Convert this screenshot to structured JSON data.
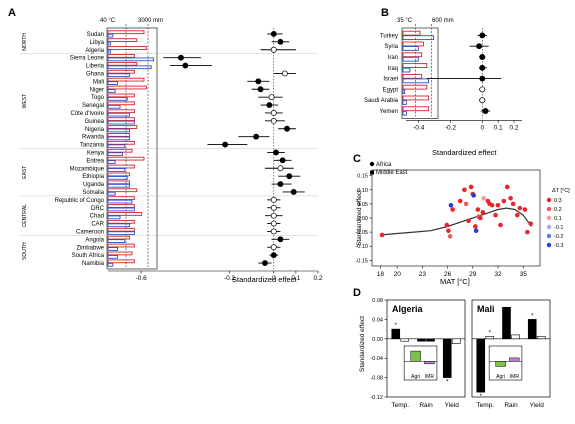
{
  "panels": {
    "a": "A",
    "b": "B",
    "c": "C",
    "d": "D"
  },
  "chart_data": [
    {
      "panel": "A",
      "type": "forest",
      "xlabel": "Standardized effect",
      "xlim": [
        -0.75,
        0.2
      ],
      "xticks": [
        -0.6,
        -0.2,
        0,
        0.1,
        0.2
      ],
      "bar_scale_labels": [
        "40 °C",
        "3000 mm"
      ],
      "regions": [
        "NORTH",
        "WEST",
        "EAST",
        "CENTRAL",
        "SOUTH"
      ],
      "countries": [
        "Sudan",
        "Libya",
        "Algeria",
        "Sierra Leone",
        "Liberia",
        "Ghana",
        "Mali",
        "Niger",
        "Togo",
        "Senegal",
        "Côte d'Ivoire",
        "Guinea",
        "Nigeria",
        "Rwanda",
        "Tanzania",
        "Kenya",
        "Eritrea",
        "Mozambique",
        "Ethiopia",
        "Uganda",
        "Somalia",
        "Republic of Congo",
        "DRC",
        "Chad",
        "CAR",
        "Cameroon",
        "Angola",
        "Zimbabwe",
        "South Africa",
        "Namibia"
      ],
      "temp_bar": [
        0.75,
        0.6,
        0.8,
        0.55,
        0.6,
        0.55,
        0.75,
        0.8,
        0.55,
        0.55,
        0.55,
        0.55,
        0.6,
        0.45,
        0.55,
        0.5,
        0.75,
        0.55,
        0.45,
        0.45,
        0.6,
        0.55,
        0.55,
        0.7,
        0.55,
        0.55,
        0.45,
        0.55,
        0.5,
        0.55
      ],
      "rain_bar": [
        0.1,
        0.05,
        0.05,
        0.95,
        0.9,
        0.45,
        0.2,
        0.15,
        0.4,
        0.25,
        0.45,
        0.55,
        0.45,
        0.45,
        0.35,
        0.3,
        0.15,
        0.35,
        0.4,
        0.45,
        0.15,
        0.5,
        0.55,
        0.25,
        0.45,
        0.55,
        0.35,
        0.2,
        0.2,
        0.1
      ],
      "effects": [
        {
          "value": 0.0,
          "lo": -0.03,
          "hi": 0.04,
          "fill": "black"
        },
        {
          "value": 0.03,
          "lo": -0.01,
          "hi": 0.07,
          "fill": "black"
        },
        {
          "value": 0.0,
          "lo": -0.06,
          "hi": 0.1,
          "fill": "white"
        },
        {
          "value": -0.42,
          "lo": -0.5,
          "hi": -0.33,
          "fill": "black"
        },
        {
          "value": -0.4,
          "lo": -0.47,
          "hi": -0.28,
          "fill": "black"
        },
        {
          "value": 0.05,
          "lo": 0.0,
          "hi": 0.1,
          "fill": "white"
        },
        {
          "value": -0.07,
          "lo": -0.12,
          "hi": -0.02,
          "fill": "black"
        },
        {
          "value": -0.06,
          "lo": -0.1,
          "hi": -0.02,
          "fill": "black"
        },
        {
          "value": -0.01,
          "lo": -0.07,
          "hi": 0.04,
          "fill": "white"
        },
        {
          "value": -0.02,
          "lo": -0.06,
          "hi": 0.02,
          "fill": "black"
        },
        {
          "value": 0.0,
          "lo": -0.04,
          "hi": 0.04,
          "fill": "white"
        },
        {
          "value": 0.0,
          "lo": -0.04,
          "hi": 0.05,
          "fill": "white"
        },
        {
          "value": 0.06,
          "lo": 0.02,
          "hi": 0.1,
          "fill": "black"
        },
        {
          "value": -0.08,
          "lo": -0.16,
          "hi": -0.02,
          "fill": "black"
        },
        {
          "value": -0.22,
          "lo": -0.3,
          "hi": -0.12,
          "fill": "black"
        },
        {
          "value": 0.01,
          "lo": -0.03,
          "hi": 0.05,
          "fill": "black"
        },
        {
          "value": 0.04,
          "lo": 0.0,
          "hi": 0.08,
          "fill": "black"
        },
        {
          "value": 0.03,
          "lo": -0.04,
          "hi": 0.09,
          "fill": "white"
        },
        {
          "value": 0.07,
          "lo": 0.02,
          "hi": 0.12,
          "fill": "black"
        },
        {
          "value": 0.03,
          "lo": -0.01,
          "hi": 0.08,
          "fill": "black"
        },
        {
          "value": 0.09,
          "lo": 0.04,
          "hi": 0.14,
          "fill": "black"
        },
        {
          "value": 0.0,
          "lo": -0.03,
          "hi": 0.03,
          "fill": "white"
        },
        {
          "value": 0.0,
          "lo": -0.03,
          "hi": 0.03,
          "fill": "white"
        },
        {
          "value": 0.0,
          "lo": -0.04,
          "hi": 0.04,
          "fill": "white"
        },
        {
          "value": 0.0,
          "lo": -0.03,
          "hi": 0.03,
          "fill": "white"
        },
        {
          "value": 0.0,
          "lo": -0.03,
          "hi": 0.03,
          "fill": "white"
        },
        {
          "value": 0.03,
          "lo": -0.01,
          "hi": 0.07,
          "fill": "black"
        },
        {
          "value": 0.0,
          "lo": -0.03,
          "hi": 0.03,
          "fill": "white"
        },
        {
          "value": 0.0,
          "lo": -0.02,
          "hi": 0.02,
          "fill": "black"
        },
        {
          "value": -0.04,
          "lo": -0.07,
          "hi": -0.01,
          "fill": "black"
        }
      ]
    },
    {
      "panel": "B",
      "type": "forest",
      "xlabel": "Standardized effect",
      "xlim": [
        -0.48,
        0.25
      ],
      "xticks": [
        -0.4,
        -0.2,
        0,
        0.1,
        0.2
      ],
      "bar_scale_labels": [
        "35 °C",
        "600 mm"
      ],
      "countries": [
        "Turkey",
        "Syria",
        "Iran",
        "Iraq",
        "Israel",
        "Egypt",
        "Saudi Arabia",
        "Yemen"
      ],
      "temp_bar": [
        0.5,
        0.6,
        0.55,
        0.7,
        0.55,
        0.7,
        0.75,
        0.75
      ],
      "rain_bar": [
        0.9,
        0.45,
        0.45,
        0.2,
        0.75,
        0.05,
        0.1,
        0.1
      ],
      "effects": [
        {
          "value": 0.0,
          "lo": -0.03,
          "hi": 0.03,
          "fill": "black"
        },
        {
          "value": -0.02,
          "lo": -0.08,
          "hi": 0.04,
          "fill": "black"
        },
        {
          "value": 0.0,
          "lo": -0.02,
          "hi": 0.02,
          "fill": "black"
        },
        {
          "value": 0.0,
          "lo": -0.02,
          "hi": 0.03,
          "fill": "black"
        },
        {
          "value": 0.0,
          "lo": -0.35,
          "hi": 0.12,
          "fill": "black"
        },
        {
          "value": 0.0,
          "lo": -0.02,
          "hi": 0.02,
          "fill": "white"
        },
        {
          "value": 0.0,
          "lo": -0.02,
          "hi": 0.02,
          "fill": "white"
        },
        {
          "value": 0.02,
          "lo": -0.01,
          "hi": 0.05,
          "fill": "black"
        }
      ]
    },
    {
      "panel": "C",
      "type": "scatter",
      "xlabel": "MAT [°C]",
      "ylabel": "Standardized effect",
      "xlim": [
        17,
        37
      ],
      "ylim": [
        -0.17,
        0.17
      ],
      "xticks": [
        18,
        20,
        23,
        26,
        29,
        32,
        35
      ],
      "yticks": [
        -0.15,
        -0.1,
        -0.05,
        0,
        0.05,
        0.1,
        0.15
      ],
      "legend_markers": [
        "Africa",
        "Middle East"
      ],
      "colorbar_title": "ΔT [°C]",
      "colorbar_ticks": [
        "0.3",
        "0.2",
        "0.1",
        "-0.1",
        "-0.2",
        "-0.3"
      ],
      "colorbar_colors": [
        "#e8252b",
        "#ee5a5e",
        "#f49a9c",
        "#9aaee8",
        "#5a78e0",
        "#2340d8"
      ],
      "points": [
        {
          "x": 18.2,
          "y": -0.06,
          "c": "#e8252b"
        },
        {
          "x": 25.9,
          "y": -0.025,
          "c": "#e8252b"
        },
        {
          "x": 26.1,
          "y": -0.045,
          "c": "#e8252b"
        },
        {
          "x": 26.3,
          "y": -0.065,
          "c": "#ee5a5e"
        },
        {
          "x": 26.4,
          "y": 0.045,
          "c": "#2340d8"
        },
        {
          "x": 26.6,
          "y": 0.03,
          "c": "#e8252b"
        },
        {
          "x": 27.5,
          "y": 0.06,
          "c": "#e8252b"
        },
        {
          "x": 28.0,
          "y": 0.1,
          "c": "#e8252b"
        },
        {
          "x": 28.2,
          "y": 0.05,
          "c": "#ee5a5e"
        },
        {
          "x": 28.5,
          "y": -0.01,
          "c": "#e8252b"
        },
        {
          "x": 28.8,
          "y": 0.11,
          "c": "#e8252b"
        },
        {
          "x": 29.0,
          "y": 0.085,
          "c": "#e8252b"
        },
        {
          "x": 29.1,
          "y": 0.08,
          "c": "#2340d8"
        },
        {
          "x": 29.3,
          "y": -0.03,
          "c": "#e8252b"
        },
        {
          "x": 29.4,
          "y": -0.045,
          "c": "#2340d8"
        },
        {
          "x": 29.6,
          "y": 0.03,
          "c": "#e8252b"
        },
        {
          "x": 29.7,
          "y": 0.005,
          "c": "#ee5a5e"
        },
        {
          "x": 29.9,
          "y": 0.0,
          "c": "#e8252b"
        },
        {
          "x": 30.2,
          "y": 0.02,
          "c": "#e8252b"
        },
        {
          "x": 30.3,
          "y": 0.07,
          "c": "#f49a9c"
        },
        {
          "x": 30.8,
          "y": 0.06,
          "c": "#e8252b"
        },
        {
          "x": 31.0,
          "y": 0.05,
          "c": "#e8252b"
        },
        {
          "x": 31.3,
          "y": 0.045,
          "c": "#e8252b"
        },
        {
          "x": 31.7,
          "y": 0.01,
          "c": "#e8252b"
        },
        {
          "x": 32.0,
          "y": 0.045,
          "c": "#e8252b"
        },
        {
          "x": 32.3,
          "y": -0.025,
          "c": "#e8252b"
        },
        {
          "x": 32.7,
          "y": 0.06,
          "c": "#e8252b"
        },
        {
          "x": 33.1,
          "y": 0.11,
          "c": "#e8252b"
        },
        {
          "x": 33.5,
          "y": 0.07,
          "c": "#e8252b"
        },
        {
          "x": 33.8,
          "y": 0.05,
          "c": "#e8252b"
        },
        {
          "x": 34.3,
          "y": 0.01,
          "c": "#e8252b"
        },
        {
          "x": 34.6,
          "y": 0.035,
          "c": "#e8252b"
        },
        {
          "x": 35.2,
          "y": 0.03,
          "c": "#e8252b"
        },
        {
          "x": 35.5,
          "y": -0.05,
          "c": "#e8252b"
        },
        {
          "x": 35.9,
          "y": -0.02,
          "c": "#e8252b"
        }
      ],
      "fit": {
        "x": [
          18,
          20,
          22,
          24,
          26,
          28,
          30,
          31,
          32,
          33,
          34,
          35,
          36
        ],
        "y": [
          -0.06,
          -0.055,
          -0.05,
          -0.045,
          -0.03,
          -0.01,
          0.01,
          0.02,
          0.03,
          0.035,
          0.03,
          0.01,
          -0.03
        ]
      }
    },
    {
      "panel": "D",
      "type": "bar",
      "ylabel": "Standardized effect",
      "ylim": [
        -0.12,
        0.08
      ],
      "yticks": [
        0.08,
        0.04,
        0,
        -0.04,
        -0.08,
        -0.12
      ],
      "categories": [
        "Temp.",
        "Rain",
        "Yield"
      ],
      "sub": [
        {
          "title": "Algeria",
          "bars": [
            {
              "cat": 0,
              "offset": -1,
              "value": 0.02,
              "fill": "black",
              "star": true
            },
            {
              "cat": 0,
              "offset": 1,
              "value": -0.005,
              "fill": "white",
              "star": false
            },
            {
              "cat": 1,
              "offset": -1,
              "value": -0.005,
              "fill": "black",
              "star": false
            },
            {
              "cat": 1,
              "offset": 1,
              "value": -0.005,
              "fill": "black",
              "star": false
            },
            {
              "cat": 2,
              "offset": -1,
              "value": -0.08,
              "fill": "black",
              "star": true
            },
            {
              "cat": 2,
              "offset": 1,
              "value": -0.01,
              "fill": "white",
              "star": false
            }
          ],
          "inset": {
            "labels": [
              "Agri",
              "IMR"
            ],
            "values": [
              0.6,
              -0.15
            ],
            "colors": [
              "#7cc24a",
              "#c080d0"
            ]
          }
        },
        {
          "title": "Mali",
          "bars": [
            {
              "cat": 0,
              "offset": -1,
              "value": -0.11,
              "fill": "black",
              "star": true
            },
            {
              "cat": 0,
              "offset": 1,
              "value": 0.005,
              "fill": "white",
              "star": true
            },
            {
              "cat": 1,
              "offset": -1,
              "value": 0.065,
              "fill": "black",
              "star": false
            },
            {
              "cat": 1,
              "offset": 1,
              "value": 0.008,
              "fill": "white",
              "star": false
            },
            {
              "cat": 2,
              "offset": -1,
              "value": 0.04,
              "fill": "black",
              "star": true
            },
            {
              "cat": 2,
              "offset": 1,
              "value": 0.005,
              "fill": "white",
              "star": false
            }
          ],
          "inset": {
            "labels": [
              "Agri",
              "IMR"
            ],
            "values": [
              -0.3,
              0.2
            ],
            "colors": [
              "#7cc24a",
              "#c080d0"
            ]
          }
        }
      ]
    }
  ]
}
